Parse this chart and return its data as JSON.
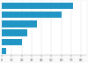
{
  "values": [
    72,
    60,
    35,
    26,
    20,
    4
  ],
  "bar_color": "#2196c4",
  "background_color": "#f9f9f9",
  "plot_bg": "#ffffff",
  "xlim": [
    0,
    85
  ],
  "xticks": [
    0,
    10,
    20,
    30,
    40,
    50,
    60,
    70,
    80
  ],
  "bar_height": 0.72,
  "grid_color": "#dddddd",
  "tick_color": "#555555",
  "tick_fontsize": 2.5
}
